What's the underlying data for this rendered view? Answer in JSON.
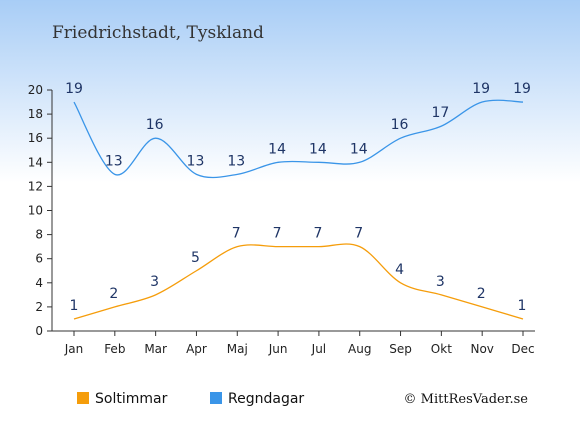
{
  "chart_data": {
    "type": "line",
    "title": "Friedrichstadt, Tyskland",
    "categories": [
      "Jan",
      "Feb",
      "Mar",
      "Apr",
      "Maj",
      "Jun",
      "Jul",
      "Aug",
      "Sep",
      "Okt",
      "Nov",
      "Dec"
    ],
    "ylim": [
      0,
      20
    ],
    "yticks": [
      0,
      2,
      4,
      6,
      8,
      10,
      12,
      14,
      16,
      18,
      20
    ],
    "series": [
      {
        "name": "Soltimmar",
        "color": "#f59d0b",
        "values": [
          1,
          2,
          3,
          5,
          7,
          7,
          7,
          7,
          4,
          3,
          2,
          1
        ]
      },
      {
        "name": "Regndagar",
        "color": "#3a95e8",
        "values": [
          19,
          13,
          16,
          13,
          13,
          14,
          14,
          14,
          16,
          17,
          19,
          19
        ]
      }
    ],
    "legend_placement": "bottom",
    "credit": "© MittResVader.se",
    "colors": {
      "background_top": "#a8cdf6",
      "background_bottom": "#ffffff"
    }
  }
}
